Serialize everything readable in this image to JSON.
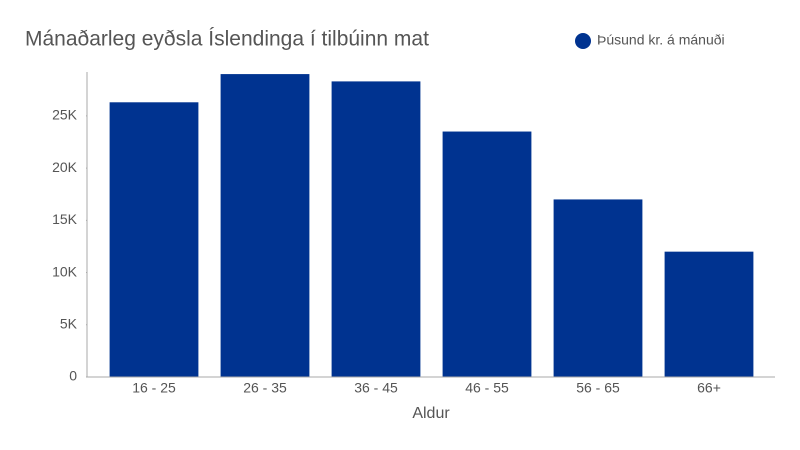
{
  "chart_data": {
    "type": "bar",
    "title": "Mánaðarleg eyðsla Íslendinga í tilbúinn mat",
    "x_label": "Aldur",
    "categories": [
      "16 - 25",
      "26 - 35",
      "36 - 45",
      "46 - 55",
      "56 - 65",
      "66+"
    ],
    "series": [
      {
        "name": "Þúsund kr. á mánuði",
        "color": "#003390",
        "values": [
          26300,
          29000,
          28300,
          23500,
          17000,
          12000
        ]
      }
    ],
    "ylim": [
      0,
      29200
    ],
    "yticks": [
      0,
      {
        "value": 5000,
        "label": "5K"
      },
      {
        "value": 10000,
        "label": "10K"
      },
      {
        "value": 15000,
        "label": "15K"
      },
      {
        "value": 20000,
        "label": "20K"
      },
      {
        "value": 25000,
        "label": "25K"
      }
    ],
    "grid": false,
    "legend": "top-right"
  }
}
